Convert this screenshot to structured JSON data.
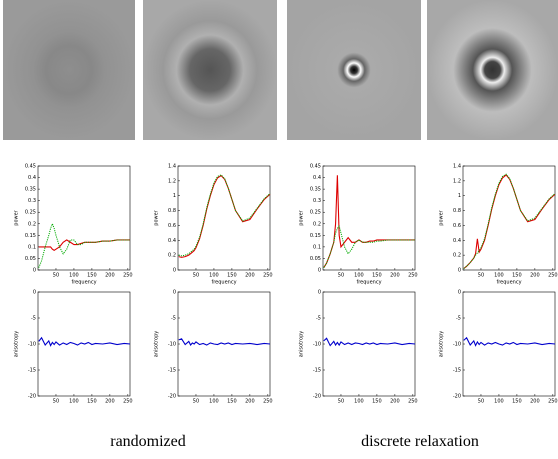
{
  "chart_data": [
    {
      "type": "line",
      "ylabel": "power",
      "xlabel": "frequency",
      "x": [
        2,
        10,
        20,
        30,
        35,
        40,
        45,
        50,
        60,
        70,
        80,
        90,
        100,
        110,
        120,
        130,
        140,
        150,
        160,
        180,
        200,
        220,
        240,
        256
      ],
      "xlim": [
        0,
        256
      ],
      "ylim": [
        0,
        0.45
      ],
      "xticks": [
        50,
        100,
        150,
        200,
        250
      ],
      "yticks": [
        0,
        0.05,
        0.1,
        0.15,
        0.2,
        0.25,
        0.3,
        0.35,
        0.4,
        0.45
      ],
      "series": [
        {
          "color": "#dd0000",
          "style": "solid",
          "values": [
            0.1,
            0.1,
            0.1,
            0.1,
            0.1,
            0.09,
            0.085,
            0.09,
            0.1,
            0.12,
            0.13,
            0.12,
            0.11,
            0.11,
            0.115,
            0.12,
            0.12,
            0.12,
            0.12,
            0.125,
            0.125,
            0.13,
            0.13,
            0.13
          ]
        },
        {
          "color": "#00aa00",
          "style": "dotted",
          "values": [
            0.01,
            0.04,
            0.1,
            0.15,
            0.18,
            0.2,
            0.18,
            0.15,
            0.1,
            0.07,
            0.09,
            0.13,
            0.13,
            0.11,
            0.11,
            0.12,
            0.12,
            0.12,
            0.12,
            0.125,
            0.125,
            0.13,
            0.13,
            0.13
          ]
        }
      ]
    },
    {
      "type": "line",
      "ylabel": "power",
      "xlabel": "frequency",
      "x": [
        2,
        10,
        20,
        30,
        35,
        40,
        45,
        50,
        60,
        70,
        80,
        90,
        100,
        110,
        120,
        130,
        140,
        150,
        160,
        180,
        200,
        220,
        240,
        256
      ],
      "xlim": [
        0,
        256
      ],
      "ylim": [
        0,
        1.4
      ],
      "xticks": [
        50,
        100,
        150,
        200,
        250
      ],
      "yticks": [
        0,
        0.2,
        0.4,
        0.6,
        0.8,
        1,
        1.2,
        1.4
      ],
      "series": [
        {
          "color": "#dd0000",
          "style": "solid",
          "values": [
            0.18,
            0.17,
            0.18,
            0.2,
            0.22,
            0.24,
            0.26,
            0.3,
            0.42,
            0.6,
            0.82,
            1.0,
            1.15,
            1.24,
            1.27,
            1.22,
            1.1,
            0.95,
            0.8,
            0.65,
            0.68,
            0.82,
            0.95,
            1.02
          ]
        },
        {
          "color": "#00aa00",
          "style": "dotted",
          "values": [
            0.2,
            0.19,
            0.2,
            0.22,
            0.24,
            0.26,
            0.28,
            0.32,
            0.44,
            0.62,
            0.84,
            1.02,
            1.17,
            1.26,
            1.28,
            1.23,
            1.1,
            0.95,
            0.8,
            0.66,
            0.7,
            0.83,
            0.96,
            1.03
          ]
        }
      ]
    },
    {
      "type": "line",
      "ylabel": "power",
      "xlabel": "frequency",
      "x": [
        2,
        10,
        20,
        30,
        35,
        40,
        45,
        50,
        60,
        70,
        80,
        90,
        100,
        110,
        120,
        130,
        140,
        150,
        160,
        180,
        200,
        220,
        240,
        256
      ],
      "xlim": [
        0,
        256
      ],
      "ylim": [
        0,
        0.45
      ],
      "xticks": [
        50,
        100,
        150,
        200,
        250
      ],
      "yticks": [
        0,
        0.05,
        0.1,
        0.15,
        0.2,
        0.25,
        0.3,
        0.35,
        0.4,
        0.45
      ],
      "series": [
        {
          "color": "#dd0000",
          "style": "solid",
          "values": [
            0.01,
            0.03,
            0.07,
            0.12,
            0.2,
            0.41,
            0.15,
            0.1,
            0.12,
            0.14,
            0.12,
            0.12,
            0.13,
            0.12,
            0.12,
            0.125,
            0.125,
            0.13,
            0.13,
            0.13,
            0.13,
            0.13,
            0.13,
            0.13
          ]
        },
        {
          "color": "#00aa00",
          "style": "dotted",
          "values": [
            0.01,
            0.03,
            0.07,
            0.12,
            0.16,
            0.18,
            0.19,
            0.16,
            0.1,
            0.07,
            0.09,
            0.12,
            0.13,
            0.12,
            0.12,
            0.12,
            0.12,
            0.125,
            0.125,
            0.13,
            0.13,
            0.13,
            0.13,
            0.13
          ]
        }
      ]
    },
    {
      "type": "line",
      "ylabel": "power",
      "xlabel": "frequency",
      "x": [
        2,
        10,
        20,
        30,
        35,
        40,
        45,
        50,
        60,
        70,
        80,
        90,
        100,
        110,
        120,
        130,
        140,
        150,
        160,
        180,
        200,
        220,
        240,
        256
      ],
      "xlim": [
        0,
        256
      ],
      "ylim": [
        0,
        1.4
      ],
      "xticks": [
        50,
        100,
        150,
        200,
        250
      ],
      "yticks": [
        0,
        0.2,
        0.4,
        0.6,
        0.8,
        1,
        1.2,
        1.4
      ],
      "series": [
        {
          "color": "#dd0000",
          "style": "solid",
          "values": [
            0.02,
            0.05,
            0.1,
            0.16,
            0.22,
            0.42,
            0.24,
            0.28,
            0.4,
            0.6,
            0.82,
            1.0,
            1.15,
            1.24,
            1.28,
            1.22,
            1.1,
            0.95,
            0.8,
            0.65,
            0.68,
            0.82,
            0.95,
            1.02
          ]
        },
        {
          "color": "#00aa00",
          "style": "dotted",
          "values": [
            0.02,
            0.05,
            0.1,
            0.16,
            0.2,
            0.23,
            0.26,
            0.3,
            0.42,
            0.62,
            0.84,
            1.02,
            1.17,
            1.26,
            1.29,
            1.23,
            1.1,
            0.95,
            0.8,
            0.66,
            0.7,
            0.83,
            0.96,
            1.03
          ]
        }
      ]
    },
    {
      "type": "line",
      "ylabel": "anisotropy",
      "x": [
        2,
        10,
        20,
        30,
        35,
        40,
        45,
        50,
        60,
        70,
        80,
        90,
        100,
        110,
        120,
        130,
        140,
        150,
        160,
        180,
        200,
        220,
        240,
        256
      ],
      "xlim": [
        0,
        256
      ],
      "ylim": [
        -20,
        0
      ],
      "xticks": [
        50,
        100,
        150,
        200,
        250
      ],
      "yticks": [
        -20,
        -15,
        -10,
        -5,
        0
      ],
      "series": [
        {
          "color": "#0000cc",
          "style": "solid",
          "values": [
            -9.5,
            -8.8,
            -10.2,
            -9.4,
            -10.3,
            -9.7,
            -10.1,
            -9.6,
            -10.2,
            -9.8,
            -10.1,
            -9.7,
            -9.9,
            -10.2,
            -9.8,
            -10,
            -9.7,
            -10.1,
            -9.9,
            -10,
            -9.8,
            -10.1,
            -9.9,
            -10
          ]
        }
      ]
    },
    {
      "type": "line",
      "ylabel": "anisotropy",
      "x": [
        2,
        10,
        20,
        30,
        35,
        40,
        45,
        50,
        60,
        70,
        80,
        90,
        100,
        110,
        120,
        130,
        140,
        150,
        160,
        180,
        200,
        220,
        240,
        256
      ],
      "xlim": [
        0,
        256
      ],
      "ylim": [
        -20,
        0
      ],
      "xticks": [
        50,
        100,
        150,
        200,
        250
      ],
      "yticks": [
        -20,
        -15,
        -10,
        -5,
        0
      ],
      "series": [
        {
          "color": "#0000cc",
          "style": "solid",
          "values": [
            -9.2,
            -9,
            -10.1,
            -9.5,
            -10.2,
            -9.8,
            -10,
            -9.6,
            -10.1,
            -9.9,
            -10.2,
            -9.8,
            -10,
            -10.1,
            -9.8,
            -10,
            -9.8,
            -10.1,
            -9.9,
            -10,
            -9.9,
            -10.1,
            -9.9,
            -10
          ]
        }
      ]
    },
    {
      "type": "line",
      "ylabel": "anisotropy",
      "x": [
        2,
        10,
        20,
        30,
        35,
        40,
        45,
        50,
        60,
        70,
        80,
        90,
        100,
        110,
        120,
        130,
        140,
        150,
        160,
        180,
        200,
        220,
        240,
        256
      ],
      "xlim": [
        0,
        256
      ],
      "ylim": [
        -20,
        0
      ],
      "xticks": [
        50,
        100,
        150,
        200,
        250
      ],
      "yticks": [
        -20,
        -15,
        -10,
        -5,
        0
      ],
      "series": [
        {
          "color": "#0000cc",
          "style": "solid",
          "values": [
            -9.4,
            -8.9,
            -10.3,
            -9.5,
            -10.2,
            -9.7,
            -10.2,
            -9.6,
            -10.1,
            -9.8,
            -10.1,
            -9.8,
            -9.9,
            -10.1,
            -9.8,
            -10,
            -9.8,
            -10.1,
            -9.9,
            -10,
            -9.8,
            -10.1,
            -9.9,
            -10
          ]
        }
      ]
    },
    {
      "type": "line",
      "ylabel": "anisotropy",
      "x": [
        2,
        10,
        20,
        30,
        35,
        40,
        45,
        50,
        60,
        70,
        80,
        90,
        100,
        110,
        120,
        130,
        140,
        150,
        160,
        180,
        200,
        220,
        240,
        256
      ],
      "xlim": [
        0,
        256
      ],
      "ylim": [
        -20,
        0
      ],
      "xticks": [
        50,
        100,
        150,
        200,
        250
      ],
      "yticks": [
        -20,
        -15,
        -10,
        -5,
        0
      ],
      "series": [
        {
          "color": "#0000cc",
          "style": "solid",
          "values": [
            -9.3,
            -8.8,
            -10.2,
            -9.4,
            -10.3,
            -9.6,
            -10.1,
            -9.7,
            -10.2,
            -9.8,
            -10,
            -9.7,
            -10,
            -10.2,
            -9.8,
            -10,
            -9.7,
            -10.1,
            -9.9,
            -10,
            -9.8,
            -10.1,
            -9.9,
            -10
          ]
        }
      ]
    }
  ],
  "captions": [
    "randomized",
    "discrete relaxation"
  ]
}
